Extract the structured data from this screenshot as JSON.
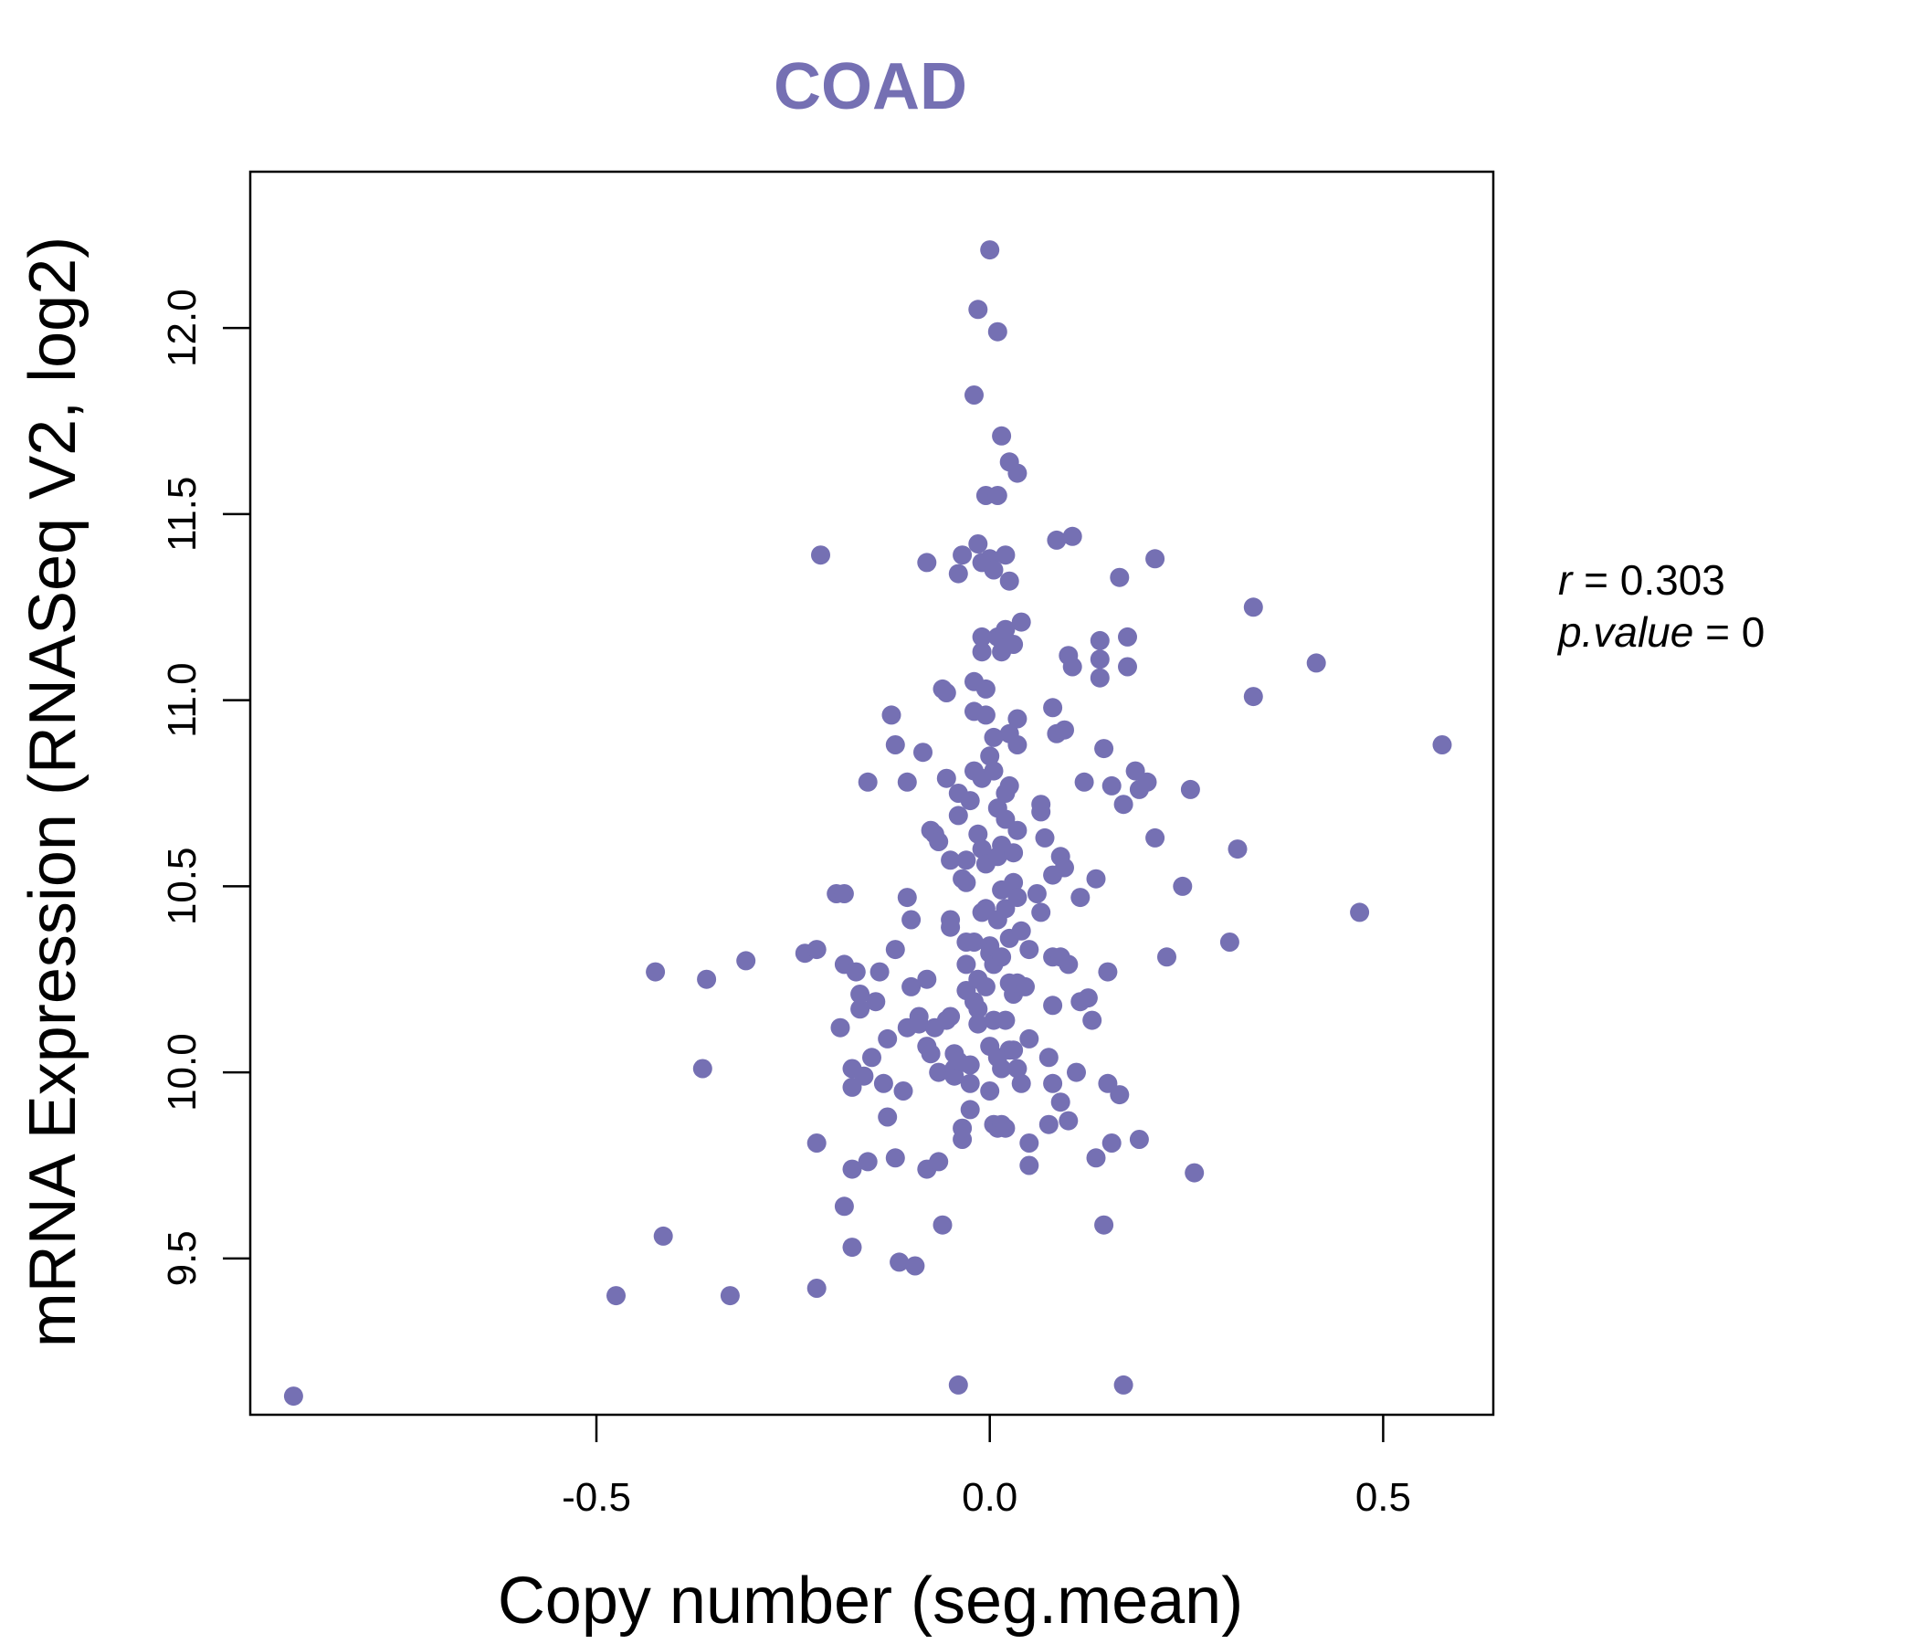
{
  "chart_data": {
    "type": "scatter",
    "title": "COAD",
    "xlabel": "Copy number (seg.mean)",
    "ylabel": "mRNA Expression (RNASeq V2, log2)",
    "xlim": [
      -0.94,
      0.64
    ],
    "ylim": [
      9.08,
      12.42
    ],
    "xticks": [
      -0.5,
      0.0,
      0.5
    ],
    "xtick_labels": [
      "-0.5",
      "0.0",
      "0.5"
    ],
    "yticks": [
      9.5,
      10.0,
      10.5,
      11.0,
      11.5,
      12.0
    ],
    "ytick_labels": [
      "9.5",
      "10.0",
      "10.5",
      "11.0",
      "11.5",
      "12.0"
    ],
    "point_color": "#7570b3",
    "stats": {
      "r_label": "r",
      "r_value": "0.303",
      "p_label": "p.value",
      "p_value": "0"
    },
    "points": [
      [
        -0.885,
        9.13
      ],
      [
        -0.475,
        9.4
      ],
      [
        -0.415,
        9.56
      ],
      [
        -0.425,
        10.27
      ],
      [
        -0.36,
        10.25
      ],
      [
        -0.365,
        10.01
      ],
      [
        -0.33,
        9.4
      ],
      [
        -0.31,
        10.3
      ],
      [
        -0.22,
        9.42
      ],
      [
        -0.215,
        11.39
      ],
      [
        -0.235,
        10.32
      ],
      [
        -0.22,
        10.33
      ],
      [
        -0.22,
        9.81
      ],
      [
        -0.195,
        10.48
      ],
      [
        -0.185,
        10.48
      ],
      [
        -0.19,
        10.12
      ],
      [
        -0.185,
        10.29
      ],
      [
        -0.185,
        9.64
      ],
      [
        -0.175,
        9.53
      ],
      [
        -0.175,
        9.74
      ],
      [
        -0.17,
        10.27
      ],
      [
        -0.175,
        10.01
      ],
      [
        -0.175,
        9.96
      ],
      [
        -0.165,
        10.17
      ],
      [
        -0.165,
        10.21
      ],
      [
        -0.16,
        9.99
      ],
      [
        -0.155,
        10.78
      ],
      [
        -0.155,
        9.76
      ],
      [
        -0.15,
        10.04
      ],
      [
        -0.145,
        10.19
      ],
      [
        -0.14,
        10.27
      ],
      [
        -0.135,
        9.97
      ],
      [
        -0.13,
        10.09
      ],
      [
        -0.13,
        9.88
      ],
      [
        -0.125,
        10.96
      ],
      [
        -0.12,
        10.88
      ],
      [
        -0.12,
        10.33
      ],
      [
        -0.12,
        9.77
      ],
      [
        -0.115,
        9.49
      ],
      [
        -0.11,
        9.95
      ],
      [
        -0.105,
        10.47
      ],
      [
        -0.105,
        10.78
      ],
      [
        -0.105,
        10.12
      ],
      [
        -0.1,
        10.23
      ],
      [
        -0.1,
        10.41
      ],
      [
        -0.095,
        9.48
      ],
      [
        -0.09,
        10.15
      ],
      [
        -0.09,
        10.13
      ],
      [
        -0.085,
        10.86
      ],
      [
        -0.08,
        10.07
      ],
      [
        -0.08,
        9.74
      ],
      [
        -0.08,
        11.37
      ],
      [
        -0.08,
        10.25
      ],
      [
        -0.075,
        10.65
      ],
      [
        -0.075,
        10.05
      ],
      [
        -0.07,
        10.12
      ],
      [
        -0.07,
        10.64
      ],
      [
        -0.065,
        9.76
      ],
      [
        -0.065,
        10.0
      ],
      [
        -0.065,
        10.62
      ],
      [
        -0.06,
        9.59
      ],
      [
        -0.06,
        11.03
      ],
      [
        -0.055,
        10.79
      ],
      [
        -0.055,
        11.02
      ],
      [
        -0.055,
        10.14
      ],
      [
        -0.05,
        10.41
      ],
      [
        -0.05,
        10.57
      ],
      [
        -0.05,
        10.39
      ],
      [
        -0.05,
        10.15
      ],
      [
        -0.045,
        10.05
      ],
      [
        -0.045,
        10.01
      ],
      [
        -0.045,
        9.99
      ],
      [
        -0.04,
        10.03
      ],
      [
        -0.04,
        11.34
      ],
      [
        -0.04,
        10.75
      ],
      [
        -0.04,
        10.69
      ],
      [
        -0.04,
        9.16
      ],
      [
        -0.035,
        9.82
      ],
      [
        -0.035,
        9.85
      ],
      [
        -0.035,
        10.52
      ],
      [
        -0.035,
        11.39
      ],
      [
        -0.03,
        10.57
      ],
      [
        -0.03,
        10.51
      ],
      [
        -0.03,
        10.35
      ],
      [
        -0.03,
        10.29
      ],
      [
        -0.03,
        10.22
      ],
      [
        -0.025,
        10.02
      ],
      [
        -0.025,
        9.97
      ],
      [
        -0.025,
        10.73
      ],
      [
        -0.025,
        9.9
      ],
      [
        -0.02,
        11.05
      ],
      [
        -0.02,
        10.97
      ],
      [
        -0.02,
        10.81
      ],
      [
        -0.02,
        10.35
      ],
      [
        -0.02,
        10.19
      ],
      [
        -0.02,
        11.82
      ],
      [
        -0.015,
        12.05
      ],
      [
        -0.015,
        11.42
      ],
      [
        -0.015,
        10.64
      ],
      [
        -0.015,
        10.25
      ],
      [
        -0.015,
        10.17
      ],
      [
        -0.015,
        10.13
      ],
      [
        -0.01,
        11.17
      ],
      [
        -0.01,
        11.13
      ],
      [
        -0.01,
        10.79
      ],
      [
        -0.01,
        10.6
      ],
      [
        -0.01,
        10.43
      ],
      [
        -0.01,
        11.37
      ],
      [
        -0.005,
        11.55
      ],
      [
        -0.005,
        10.96
      ],
      [
        -0.005,
        10.56
      ],
      [
        -0.005,
        10.44
      ],
      [
        -0.005,
        10.23
      ],
      [
        -0.005,
        11.03
      ],
      [
        0.0,
        11.38
      ],
      [
        0.0,
        10.85
      ],
      [
        0.0,
        10.34
      ],
      [
        0.0,
        10.32
      ],
      [
        0.0,
        10.07
      ],
      [
        0.0,
        9.95
      ],
      [
        0.0,
        12.21
      ],
      [
        0.005,
        11.35
      ],
      [
        0.005,
        10.9
      ],
      [
        0.005,
        10.81
      ],
      [
        0.005,
        10.29
      ],
      [
        0.005,
        10.14
      ],
      [
        0.005,
        9.86
      ],
      [
        0.01,
        11.55
      ],
      [
        0.01,
        11.17
      ],
      [
        0.01,
        10.71
      ],
      [
        0.01,
        10.58
      ],
      [
        0.01,
        10.41
      ],
      [
        0.01,
        10.04
      ],
      [
        0.01,
        9.85
      ],
      [
        0.01,
        11.99
      ],
      [
        0.015,
        11.71
      ],
      [
        0.015,
        11.13
      ],
      [
        0.015,
        10.61
      ],
      [
        0.015,
        10.49
      ],
      [
        0.015,
        10.31
      ],
      [
        0.015,
        9.86
      ],
      [
        0.015,
        10.01
      ],
      [
        0.02,
        11.39
      ],
      [
        0.02,
        11.19
      ],
      [
        0.02,
        10.75
      ],
      [
        0.02,
        10.68
      ],
      [
        0.02,
        10.44
      ],
      [
        0.02,
        10.14
      ],
      [
        0.02,
        9.85
      ],
      [
        0.025,
        11.64
      ],
      [
        0.025,
        11.32
      ],
      [
        0.025,
        10.91
      ],
      [
        0.025,
        10.77
      ],
      [
        0.025,
        10.36
      ],
      [
        0.025,
        10.06
      ],
      [
        0.025,
        10.24
      ],
      [
        0.03,
        11.15
      ],
      [
        0.03,
        10.51
      ],
      [
        0.03,
        10.59
      ],
      [
        0.03,
        10.21
      ],
      [
        0.03,
        10.06
      ],
      [
        0.035,
        11.61
      ],
      [
        0.035,
        10.95
      ],
      [
        0.035,
        10.65
      ],
      [
        0.035,
        10.88
      ],
      [
        0.035,
        10.47
      ],
      [
        0.035,
        10.24
      ],
      [
        0.035,
        10.01
      ],
      [
        0.04,
        11.21
      ],
      [
        0.04,
        10.38
      ],
      [
        0.04,
        9.97
      ],
      [
        0.045,
        10.23
      ],
      [
        0.05,
        10.33
      ],
      [
        0.05,
        10.09
      ],
      [
        0.05,
        9.81
      ],
      [
        0.05,
        9.75
      ],
      [
        0.06,
        10.48
      ],
      [
        0.065,
        10.43
      ],
      [
        0.065,
        10.7
      ],
      [
        0.065,
        10.72
      ],
      [
        0.07,
        10.63
      ],
      [
        0.075,
        10.04
      ],
      [
        0.075,
        9.86
      ],
      [
        0.08,
        10.31
      ],
      [
        0.08,
        10.18
      ],
      [
        0.08,
        10.53
      ],
      [
        0.08,
        10.98
      ],
      [
        0.08,
        9.97
      ],
      [
        0.085,
        10.91
      ],
      [
        0.085,
        11.43
      ],
      [
        0.09,
        10.31
      ],
      [
        0.09,
        10.58
      ],
      [
        0.09,
        9.92
      ],
      [
        0.095,
        10.55
      ],
      [
        0.095,
        10.92
      ],
      [
        0.1,
        9.87
      ],
      [
        0.1,
        10.29
      ],
      [
        0.1,
        11.12
      ],
      [
        0.105,
        11.09
      ],
      [
        0.105,
        11.44
      ],
      [
        0.11,
        10.0
      ],
      [
        0.115,
        10.19
      ],
      [
        0.115,
        10.47
      ],
      [
        0.12,
        10.78
      ],
      [
        0.125,
        10.2
      ],
      [
        0.13,
        10.14
      ],
      [
        0.135,
        9.77
      ],
      [
        0.135,
        10.52
      ],
      [
        0.14,
        11.16
      ],
      [
        0.14,
        11.11
      ],
      [
        0.14,
        11.06
      ],
      [
        0.145,
        10.87
      ],
      [
        0.145,
        9.59
      ],
      [
        0.15,
        10.27
      ],
      [
        0.15,
        9.97
      ],
      [
        0.155,
        10.77
      ],
      [
        0.155,
        9.81
      ],
      [
        0.165,
        11.33
      ],
      [
        0.165,
        9.94
      ],
      [
        0.17,
        10.72
      ],
      [
        0.17,
        9.16
      ],
      [
        0.175,
        11.17
      ],
      [
        0.175,
        11.09
      ],
      [
        0.185,
        10.81
      ],
      [
        0.19,
        10.76
      ],
      [
        0.19,
        9.82
      ],
      [
        0.2,
        10.78
      ],
      [
        0.21,
        11.38
      ],
      [
        0.21,
        10.63
      ],
      [
        0.225,
        10.31
      ],
      [
        0.245,
        10.5
      ],
      [
        0.255,
        10.76
      ],
      [
        0.26,
        9.73
      ],
      [
        0.305,
        10.35
      ],
      [
        0.315,
        10.6
      ],
      [
        0.335,
        11.25
      ],
      [
        0.335,
        11.01
      ],
      [
        0.415,
        11.1
      ],
      [
        0.47,
        10.43
      ],
      [
        0.575,
        10.88
      ]
    ]
  }
}
